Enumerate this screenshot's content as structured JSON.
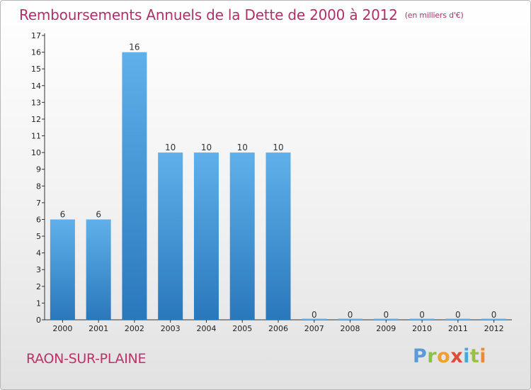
{
  "header": {
    "title": "Remboursements Annuels de la Dette de 2000 à 2012",
    "unit": "(en milliers d'€)"
  },
  "footer": {
    "commune": "RAON-SUR-PLAINE",
    "logo_text": "Proxiti"
  },
  "colors": {
    "title": "#b0306a",
    "bar_top": "#5fb0ea",
    "bar_bottom": "#2a78bc"
  },
  "chart_data": {
    "type": "bar",
    "title": "Remboursements Annuels de la Dette de 2000 à 2012",
    "xlabel": "",
    "ylabel": "",
    "categories": [
      "2000",
      "2001",
      "2002",
      "2003",
      "2004",
      "2005",
      "2006",
      "2007",
      "2008",
      "2009",
      "2010",
      "2011",
      "2012"
    ],
    "values": [
      6,
      6,
      16,
      10,
      10,
      10,
      10,
      0,
      0,
      0,
      0,
      0,
      0
    ],
    "data_labels": [
      "6",
      "6",
      "16",
      "10",
      "10",
      "10",
      "10",
      "0",
      "0",
      "0",
      "0",
      "0",
      "0"
    ],
    "ylim": [
      0,
      17
    ],
    "yticks": [
      0,
      1,
      2,
      3,
      4,
      5,
      6,
      7,
      8,
      9,
      10,
      11,
      12,
      13,
      14,
      15,
      16,
      17
    ],
    "grid": false,
    "legend": "none"
  }
}
